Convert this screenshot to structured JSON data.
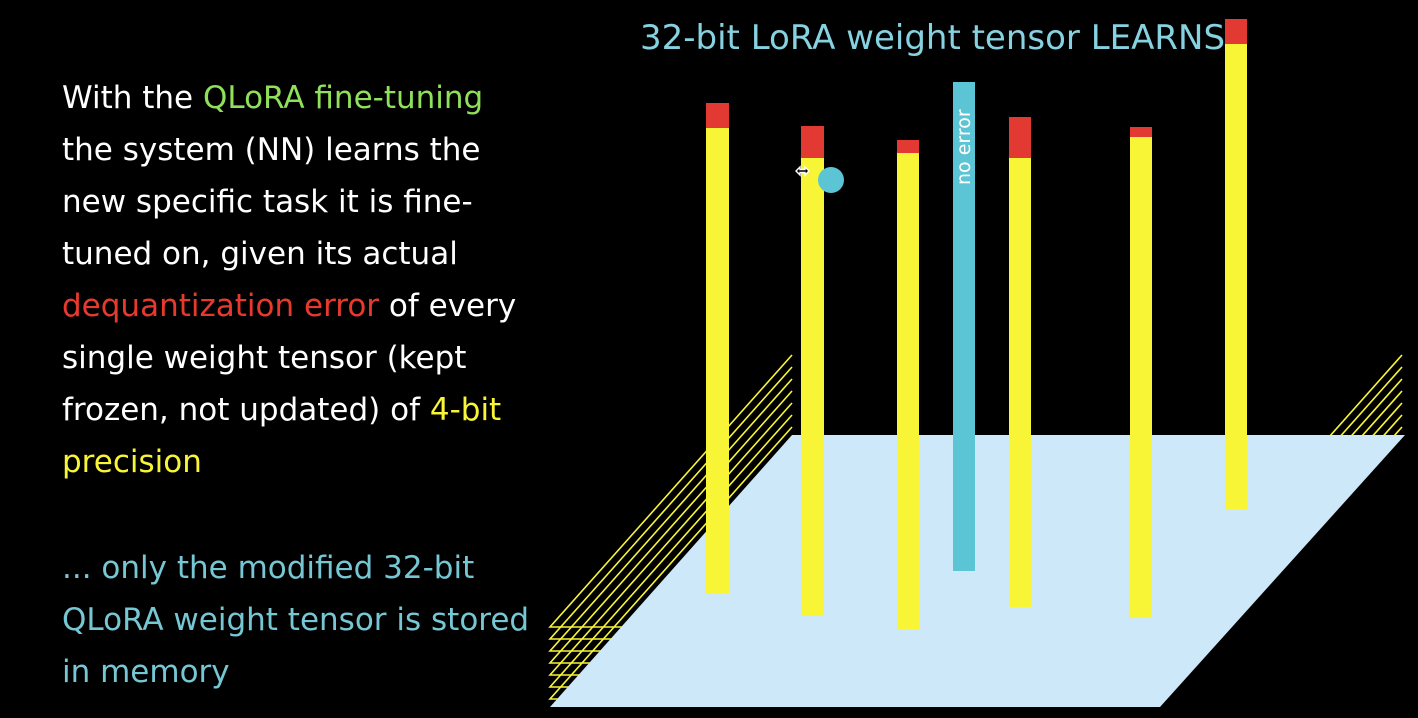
{
  "explanation": {
    "part1": "With the ",
    "highlight_qlora": "QLoRA fine-tuning",
    "part2": " the system (NN) learns the new specific task it is fine-tuned on, given its actual ",
    "highlight_error": "dequantization error",
    "part3": " of every single weight tensor (kept frozen, not updated) of ",
    "highlight_precision": "4-bit precision"
  },
  "note": "... only the modified 32-bit QLoRA weight tensor is stored in memory",
  "diagram": {
    "title": "32-bit LoRA weight tensor LEARNS",
    "no_error_label": "no error"
  },
  "colors": {
    "background": "#000000",
    "plane": "#cde8f8",
    "stack_lines": "#f7f536",
    "weight_bar": "#f7f536",
    "error_cap": "#e23a32",
    "lora_bar": "#5bc5d6",
    "cursor_dot": "#5bc5d6",
    "title": "#86d2e0",
    "note": "#76c7d3",
    "qlora_highlight": "#8fe05a",
    "error_highlight": "#e8392f",
    "precision_highlight": "#f7f536"
  },
  "icons": [
    "cursor-dot",
    "resize-cursor-icon"
  ]
}
